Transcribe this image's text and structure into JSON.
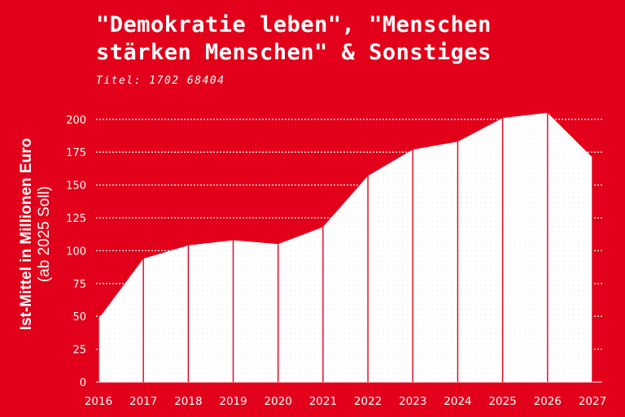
{
  "title": "\"Demokratie leben\", \"Menschen\nstärken Menschen\" & Sonstiges",
  "subtitle": "Titel: 1702 68404",
  "colors": {
    "background": "#e2001a",
    "fill": "#ffffff",
    "grid": "#ffffff"
  },
  "chart_data": {
    "type": "area",
    "ylabel": "Ist-Mittel in Millionen Euro",
    "ylabel_note": "(ab 2025 Soll)",
    "x": [
      "2016",
      "2017",
      "2018",
      "2019",
      "2020",
      "2021",
      "2022",
      "2023",
      "2024",
      "2025",
      "2026",
      "2027"
    ],
    "y": [
      48,
      94,
      104,
      108,
      105,
      118,
      157,
      177,
      183,
      201,
      205,
      171
    ],
    "yticks": [
      0,
      25,
      50,
      75,
      100,
      125,
      150,
      175,
      200
    ],
    "ylim": [
      0,
      205
    ],
    "grid": true
  }
}
